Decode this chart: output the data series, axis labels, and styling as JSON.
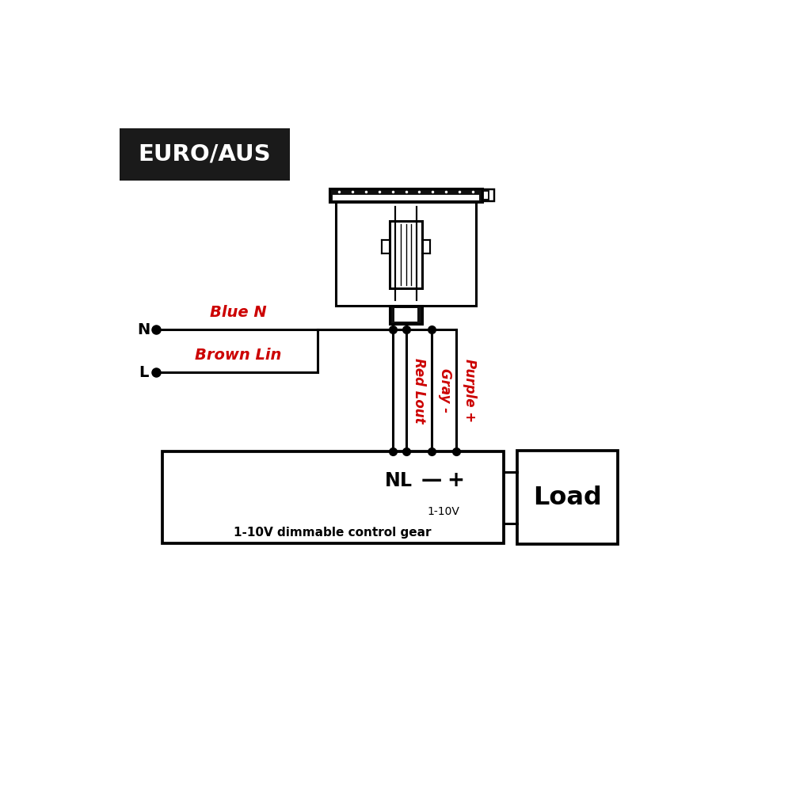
{
  "bg_color": "#ffffff",
  "title_text": "EURO/AUS",
  "title_bg": "#1a1a1a",
  "title_fg": "#ffffff",
  "wire_color": "#000000",
  "label_color": "#cc0000",
  "black_color": "#000000",
  "label_blue_n": "Blue N",
  "label_brown_lin": "Brown Lin",
  "label_red_lout": "Red Lout",
  "label_gray": "Gray -",
  "label_purple": "Purple +",
  "label_N_box": "N",
  "label_L_box": "L",
  "label_minus": "—",
  "label_plus": "+",
  "label_1_10V": "1-10V",
  "label_gear": "1-10V dimmable control gear",
  "label_load": "Load",
  "label_N_input": "N",
  "label_L_input": "L"
}
